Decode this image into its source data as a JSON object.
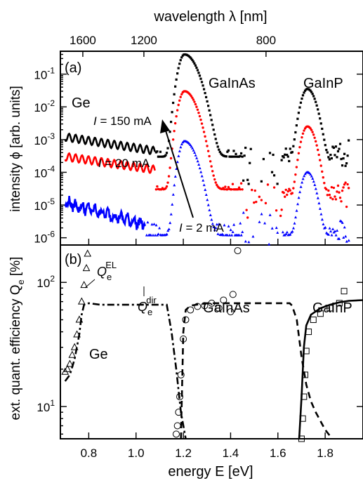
{
  "chart_data": [
    {
      "panel_label": "(a)",
      "type": "scatter",
      "log_scale_y": true,
      "ylabel": "intensity ϕ [arb. units]",
      "ylim": [
        6e-07,
        0.5
      ],
      "xlim": [
        0.68,
        1.96
      ],
      "top_axis_label": "wavelength λ [nm]",
      "top_ticks": [
        {
          "label": "1600",
          "wavelength": 1600
        },
        {
          "label": "1200",
          "wavelength": 1200
        },
        {
          "label": "800",
          "wavelength": 800
        }
      ],
      "yticks": [
        {
          "label": "10",
          "sup": "-1",
          "value": 0.1
        },
        {
          "label": "10",
          "sup": "-2",
          "value": 0.01
        },
        {
          "label": "10",
          "sup": "-3",
          "value": 0.001
        },
        {
          "label": "10",
          "sup": "-4",
          "value": 0.0001
        },
        {
          "label": "10",
          "sup": "-5",
          "value": 1e-05
        },
        {
          "label": "10",
          "sup": "-6",
          "value": 1e-06
        }
      ],
      "series": [
        {
          "color": "#000000",
          "label": "I = 150 mA",
          "marker": "square",
          "ge": {
            "x0": 0.7,
            "x1": 1.08,
            "start": 0.0012,
            "end": 0.00045
          },
          "galnas": {
            "peak_x": 1.205,
            "peak_y": 0.4,
            "left_w": 0.032,
            "right_w": 0.065,
            "base": 0.0003
          },
          "gap_level": 0.0002,
          "galnp": {
            "peak_x": 1.725,
            "peak_y": 0.035,
            "left_w": 0.035,
            "right_w": 0.045,
            "base": 0.0002
          },
          "tail_level": 0.00035
        },
        {
          "color": "#ff0000",
          "label": "I = 20 mA",
          "marker": "circle",
          "ge": {
            "x0": 0.7,
            "x1": 1.08,
            "start": 0.0003,
            "end": 0.00012
          },
          "galnas": {
            "peak_x": 1.205,
            "peak_y": 0.03,
            "left_w": 0.032,
            "right_w": 0.06,
            "base": 3e-05
          },
          "gap_level": 2e-05,
          "galnp": {
            "peak_x": 1.725,
            "peak_y": 0.0025,
            "left_w": 0.033,
            "right_w": 0.042,
            "base": 1.5e-05
          },
          "tail_level": 2e-05
        },
        {
          "color": "#0000ff",
          "label": "I = 2 mA",
          "marker": "triangle",
          "ge": {
            "x0": 0.7,
            "x1": 1.04,
            "start": 1.2e-05,
            "end": 2.5e-06
          },
          "galnas": {
            "peak_x": 1.205,
            "peak_y": 0.0009,
            "left_w": 0.03,
            "right_w": 0.058,
            "base": 1.2e-06
          },
          "gap_level": 1.2e-06,
          "galnp": {
            "peak_x": 1.725,
            "peak_y": 0.0001,
            "left_w": 0.033,
            "right_w": 0.04,
            "base": 1.2e-06
          },
          "tail_level": 1.2e-06
        }
      ],
      "annotations": [
        {
          "text": "Ge"
        },
        {
          "text": "GaInAs"
        },
        {
          "text": "GaInP"
        }
      ],
      "current_labels": [
        {
          "italic": "I",
          "text": " = 150 mA"
        },
        {
          "italic": "I",
          "text": " = 20 mA"
        },
        {
          "italic": "I",
          "text": " = 2 mA"
        }
      ]
    },
    {
      "panel_label": "(b)",
      "type": "scatter",
      "log_scale_y": true,
      "ylabel": "ext. quant. efficiency Q",
      "ylabel_sub": "e",
      "ylabel_unit": " [%]",
      "ylim": [
        5.5,
        200
      ],
      "xlim": [
        0.68,
        1.96
      ],
      "xlabel": "energy E [eV]",
      "xticks": [
        "0.8",
        "1.0",
        "1.2",
        "1.4",
        "1.6",
        "1.8"
      ],
      "xtick_values": [
        0.8,
        1.0,
        1.2,
        1.4,
        1.6,
        1.8
      ],
      "yticks": [
        {
          "label": "10",
          "sup": "2",
          "value": 100
        },
        {
          "label": "10",
          "sup": "1",
          "value": 10
        }
      ],
      "labels": [
        {
          "text": "Q",
          "sub": "e",
          "sup": "EL"
        },
        {
          "text": "Q",
          "sub": "e",
          "sup": "dir"
        },
        {
          "text": "GaInAs"
        },
        {
          "text": "GaInP"
        },
        {
          "text": "Ge"
        }
      ],
      "Qdir_dashdot": [
        [
          0.7,
          16
        ],
        [
          0.72,
          18
        ],
        [
          0.74,
          24
        ],
        [
          0.76,
          38
        ],
        [
          0.77,
          55
        ],
        [
          0.78,
          66
        ],
        [
          0.8,
          68
        ],
        [
          0.85,
          66
        ],
        [
          0.9,
          66
        ],
        [
          0.95,
          66
        ],
        [
          1.0,
          66
        ],
        [
          1.05,
          66
        ],
        [
          1.1,
          66
        ],
        [
          1.13,
          66
        ],
        [
          1.15,
          40
        ],
        [
          1.17,
          20
        ],
        [
          1.19,
          9
        ],
        [
          1.21,
          5.5
        ]
      ],
      "Qdir_solid": [
        [
          1.19,
          5.5
        ],
        [
          1.195,
          15
        ],
        [
          1.2,
          40
        ],
        [
          1.21,
          60
        ],
        [
          1.23,
          65
        ],
        [
          1.3,
          68
        ],
        [
          1.4,
          68
        ],
        [
          1.5,
          68
        ],
        [
          1.6,
          68
        ],
        [
          1.65,
          68
        ],
        [
          1.66,
          65
        ],
        [
          1.68,
          50
        ],
        [
          1.7,
          25
        ],
        [
          1.72,
          15
        ],
        [
          1.74,
          11
        ],
        [
          1.76,
          9
        ],
        [
          1.8,
          6.5
        ],
        [
          1.83,
          5.5
        ]
      ],
      "Qdir_galnp": [
        [
          1.69,
          5.5
        ],
        [
          1.7,
          12
        ],
        [
          1.71,
          30
        ],
        [
          1.72,
          45
        ],
        [
          1.74,
          55
        ],
        [
          1.78,
          62
        ],
        [
          1.82,
          66
        ],
        [
          1.86,
          69
        ],
        [
          1.9,
          71
        ],
        [
          1.96,
          72
        ]
      ],
      "Qel_Ge": [
        [
          0.7,
          19
        ],
        [
          0.71,
          20
        ],
        [
          0.72,
          22
        ],
        [
          0.73,
          26
        ],
        [
          0.74,
          30
        ],
        [
          0.75,
          38
        ],
        [
          0.76,
          50
        ],
        [
          0.77,
          70
        ],
        [
          0.78,
          95
        ],
        [
          0.79,
          130
        ],
        [
          0.795,
          170
        ]
      ],
      "Qel_GaInAs": [
        [
          1.17,
          6
        ],
        [
          1.175,
          7
        ],
        [
          1.18,
          9
        ],
        [
          1.185,
          12
        ],
        [
          1.19,
          18
        ],
        [
          1.2,
          35
        ],
        [
          1.21,
          50
        ],
        [
          1.23,
          60
        ],
        [
          1.26,
          64
        ],
        [
          1.29,
          65
        ],
        [
          1.32,
          68
        ],
        [
          1.35,
          62
        ],
        [
          1.37,
          72
        ],
        [
          1.4,
          58
        ],
        [
          1.41,
          80
        ],
        [
          1.43,
          180
        ]
      ],
      "Qel_GaInP": [
        [
          1.7,
          5.5
        ],
        [
          1.705,
          8
        ],
        [
          1.71,
          12
        ],
        [
          1.715,
          18
        ],
        [
          1.72,
          28
        ],
        [
          1.73,
          40
        ],
        [
          1.75,
          50
        ],
        [
          1.78,
          56
        ],
        [
          1.82,
          62
        ],
        [
          1.86,
          68
        ],
        [
          1.88,
          85
        ]
      ]
    }
  ]
}
